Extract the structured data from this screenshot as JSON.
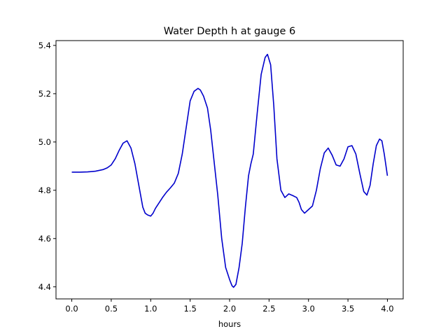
{
  "chart_data": {
    "type": "line",
    "title": "Water Depth h at gauge 6",
    "xlabel": "hours",
    "ylabel": "",
    "xlim": [
      -0.2,
      4.2
    ],
    "ylim": [
      4.35,
      5.42
    ],
    "xticks": [
      0.0,
      0.5,
      1.0,
      1.5,
      2.0,
      2.5,
      3.0,
      3.5,
      4.0
    ],
    "xtick_labels": [
      "0.0",
      "0.5",
      "1.0",
      "1.5",
      "2.0",
      "2.5",
      "3.0",
      "3.5",
      "4.0"
    ],
    "yticks": [
      4.4,
      4.6,
      4.8,
      5.0,
      5.2,
      5.4
    ],
    "ytick_labels": [
      "4.4",
      "4.6",
      "4.8",
      "5.0",
      "5.2",
      "5.4"
    ],
    "grid": false,
    "legend": "none",
    "series": [
      {
        "color": "#0000cc",
        "x": [
          0.0,
          0.1,
          0.2,
          0.3,
          0.4,
          0.45,
          0.5,
          0.55,
          0.6,
          0.65,
          0.7,
          0.75,
          0.8,
          0.85,
          0.9,
          0.93,
          0.96,
          1.0,
          1.03,
          1.06,
          1.1,
          1.15,
          1.2,
          1.25,
          1.3,
          1.35,
          1.4,
          1.45,
          1.5,
          1.55,
          1.6,
          1.63,
          1.67,
          1.72,
          1.76,
          1.8,
          1.85,
          1.9,
          1.95,
          2.0,
          2.03,
          2.05,
          2.08,
          2.12,
          2.16,
          2.2,
          2.24,
          2.27,
          2.3,
          2.35,
          2.4,
          2.45,
          2.48,
          2.52,
          2.56,
          2.6,
          2.65,
          2.7,
          2.75,
          2.8,
          2.85,
          2.88,
          2.91,
          2.95,
          3.0,
          3.05,
          3.1,
          3.15,
          3.2,
          3.25,
          3.3,
          3.35,
          3.4,
          3.45,
          3.5,
          3.55,
          3.6,
          3.65,
          3.7,
          3.74,
          3.78,
          3.82,
          3.86,
          3.9,
          3.93,
          3.96,
          4.0
        ],
        "y": [
          4.875,
          4.875,
          4.876,
          4.879,
          4.886,
          4.893,
          4.905,
          4.93,
          4.965,
          4.995,
          5.005,
          4.975,
          4.91,
          4.82,
          4.73,
          4.705,
          4.698,
          4.693,
          4.705,
          4.725,
          4.745,
          4.77,
          4.792,
          4.81,
          4.83,
          4.87,
          4.95,
          5.06,
          5.17,
          5.21,
          5.222,
          5.215,
          5.19,
          5.14,
          5.05,
          4.93,
          4.78,
          4.6,
          4.48,
          4.43,
          4.405,
          4.398,
          4.41,
          4.48,
          4.58,
          4.73,
          4.86,
          4.91,
          4.95,
          5.12,
          5.28,
          5.35,
          5.363,
          5.32,
          5.15,
          4.93,
          4.8,
          4.77,
          4.785,
          4.778,
          4.77,
          4.75,
          4.72,
          4.705,
          4.72,
          4.735,
          4.8,
          4.89,
          4.955,
          4.975,
          4.945,
          4.905,
          4.9,
          4.93,
          4.98,
          4.985,
          4.95,
          4.87,
          4.795,
          4.78,
          4.82,
          4.91,
          4.985,
          5.012,
          5.005,
          4.95,
          4.86
        ]
      }
    ]
  }
}
